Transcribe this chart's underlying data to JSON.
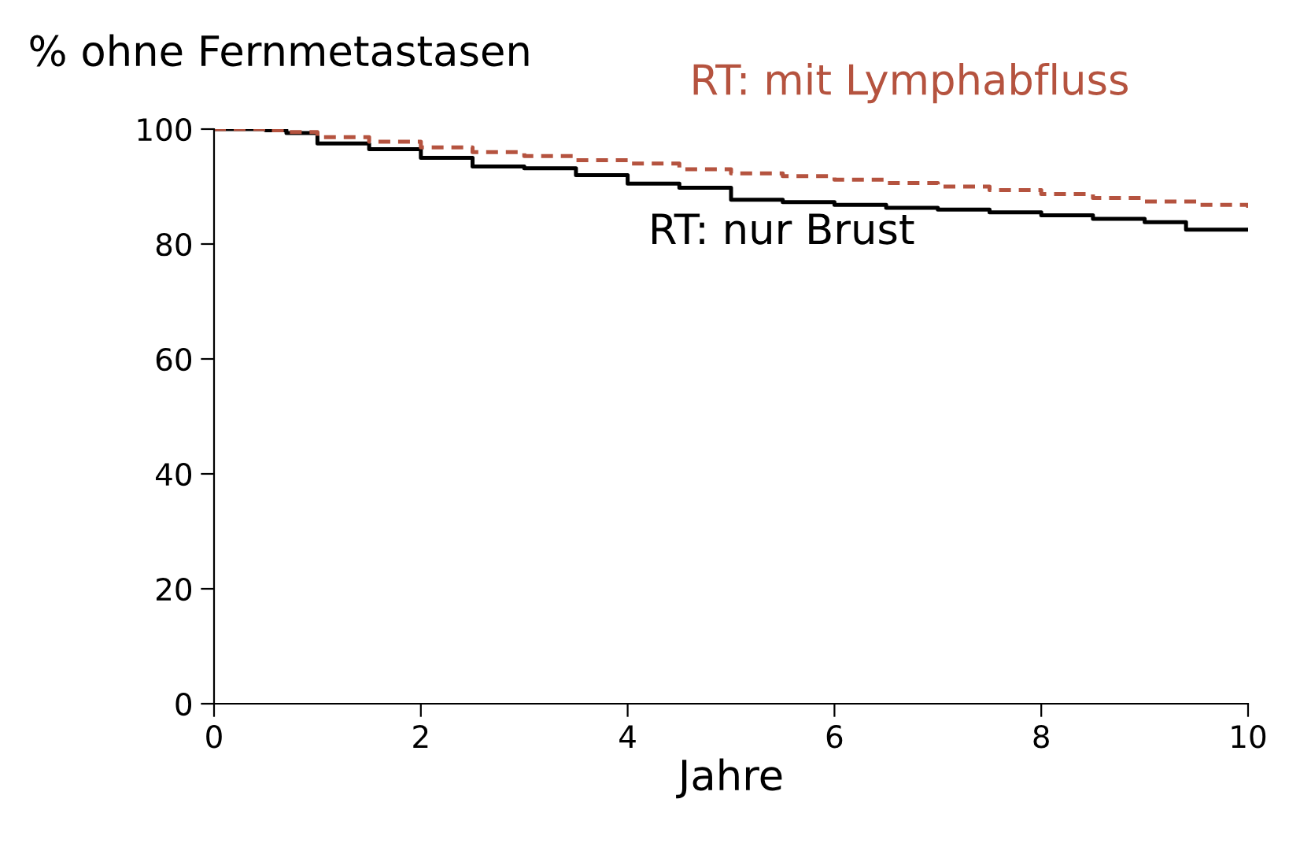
{
  "chart_data": {
    "type": "step",
    "ylabel": "% ohne Fernmetastasen",
    "xlabel": "Jahre",
    "xlim": [
      0,
      10
    ],
    "xticks": [
      0,
      2,
      4,
      6,
      8,
      10
    ],
    "ylim": [
      0,
      100
    ],
    "yticks": [
      0,
      20,
      40,
      60,
      80,
      100
    ],
    "grid": false,
    "legend": false,
    "series": [
      {
        "name": "RT: nur Brust",
        "color": "#000000",
        "line_style": "solid",
        "x": [
          0,
          0.5,
          0.7,
          1,
          1.5,
          2,
          2.5,
          3,
          3.5,
          4,
          4.5,
          5,
          5.5,
          6,
          6.5,
          7,
          7.5,
          8,
          8.5,
          9,
          9.4,
          10
        ],
        "values": [
          100,
          99.8,
          99.3,
          97.5,
          96.5,
          95,
          93.5,
          93.2,
          92,
          90.5,
          89.8,
          87.7,
          87.3,
          86.8,
          86.3,
          86,
          85.5,
          85,
          84.4,
          83.8,
          82.5,
          82.5
        ]
      },
      {
        "name": "RT: mit Lymphabfluss",
        "color": "#b5533f",
        "line_style": "dashed",
        "x": [
          0,
          0.5,
          0.7,
          1,
          1.5,
          2,
          2.5,
          3,
          3.5,
          4,
          4.5,
          5,
          5.5,
          6,
          6.5,
          7,
          7.5,
          8,
          8.5,
          9,
          9.5,
          10
        ],
        "values": [
          100,
          99.8,
          99.5,
          98.6,
          97.8,
          96.8,
          96,
          95.3,
          94.6,
          94,
          93,
          92.3,
          91.8,
          91.2,
          90.6,
          90,
          89.4,
          88.7,
          88,
          87.4,
          86.8,
          86.3
        ]
      }
    ]
  }
}
